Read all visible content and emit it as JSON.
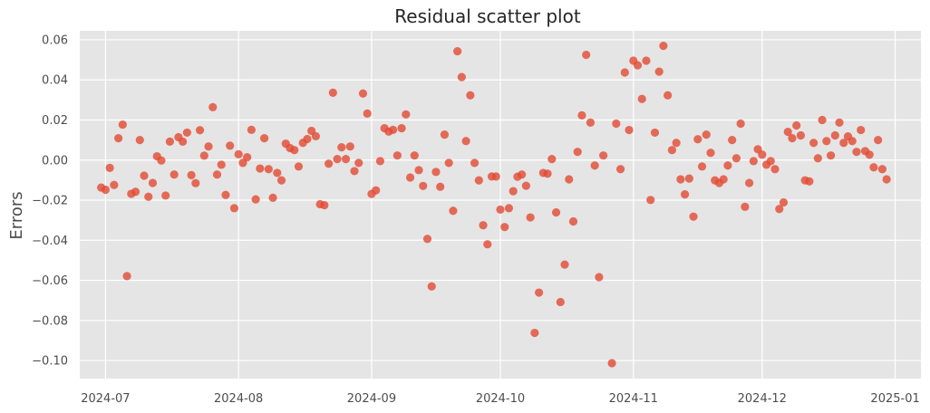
{
  "chart_data": {
    "type": "scatter",
    "title": "Residual scatter plot",
    "xlabel": "",
    "ylabel": "Errors",
    "x_axis": {
      "type": "date",
      "range": [
        "2024-06-25",
        "2025-01-07"
      ],
      "ticks": [
        "2024-07-01",
        "2024-08-01",
        "2024-09-01",
        "2024-10-01",
        "2024-11-01",
        "2024-12-01",
        "2025-01-01"
      ],
      "tick_labels": [
        "2024-07",
        "2024-08",
        "2024-09",
        "2024-10",
        "2024-11",
        "2024-12",
        "2025-01"
      ]
    },
    "ylim": [
      -0.109,
      0.0645
    ],
    "yticks": [
      0.06,
      0.04,
      0.02,
      0.0,
      -0.02,
      -0.04,
      -0.06,
      -0.08,
      -0.1
    ],
    "ytick_labels": [
      "0.06",
      "0.04",
      "0.02",
      "0.00",
      "−0.02",
      "−0.04",
      "−0.06",
      "−0.08",
      "−0.10"
    ],
    "grid": true,
    "colors": {
      "background": "#e5e5e5",
      "grid": "#ffffff",
      "marker": "#e24a33"
    },
    "series": [
      {
        "points": [
          [
            "2024-06-30",
            -0.0137
          ],
          [
            "2024-07-01",
            -0.0148
          ],
          [
            "2024-07-02",
            -0.0039
          ],
          [
            "2024-07-03",
            -0.0124
          ],
          [
            "2024-07-04",
            0.0109
          ],
          [
            "2024-07-05",
            0.0177
          ],
          [
            "2024-07-06",
            -0.0579
          ],
          [
            "2024-07-07",
            -0.0168
          ],
          [
            "2024-07-08",
            -0.0158
          ],
          [
            "2024-07-09",
            0.01
          ],
          [
            "2024-07-10",
            -0.0078
          ],
          [
            "2024-07-11",
            -0.0183
          ],
          [
            "2024-07-12",
            -0.0114
          ],
          [
            "2024-07-13",
            0.0019
          ],
          [
            "2024-07-14",
            -0.0002
          ],
          [
            "2024-07-15",
            -0.0177
          ],
          [
            "2024-07-16",
            0.0092
          ],
          [
            "2024-07-17",
            -0.0072
          ],
          [
            "2024-07-18",
            0.0114
          ],
          [
            "2024-07-19",
            0.0092
          ],
          [
            "2024-07-20",
            0.0137
          ],
          [
            "2024-07-21",
            -0.0075
          ],
          [
            "2024-07-22",
            -0.0115
          ],
          [
            "2024-07-23",
            0.0149
          ],
          [
            "2024-07-24",
            0.0022
          ],
          [
            "2024-07-25",
            0.0068
          ],
          [
            "2024-07-26",
            0.0264
          ],
          [
            "2024-07-27",
            -0.0072
          ],
          [
            "2024-07-28",
            -0.0023
          ],
          [
            "2024-07-29",
            -0.0174
          ],
          [
            "2024-07-30",
            0.0072
          ],
          [
            "2024-07-31",
            -0.024
          ],
          [
            "2024-08-01",
            0.0029
          ],
          [
            "2024-08-02",
            -0.0014
          ],
          [
            "2024-08-03",
            0.0014
          ],
          [
            "2024-08-04",
            0.0151
          ],
          [
            "2024-08-05",
            -0.0196
          ],
          [
            "2024-08-06",
            -0.0042
          ],
          [
            "2024-08-07",
            0.0109
          ],
          [
            "2024-08-08",
            -0.0045
          ],
          [
            "2024-08-09",
            -0.0188
          ],
          [
            "2024-08-10",
            -0.0064
          ],
          [
            "2024-08-11",
            -0.0101
          ],
          [
            "2024-08-12",
            0.0082
          ],
          [
            "2024-08-13",
            0.006
          ],
          [
            "2024-08-14",
            0.005
          ],
          [
            "2024-08-15",
            -0.0032
          ],
          [
            "2024-08-16",
            0.0086
          ],
          [
            "2024-08-17",
            0.0105
          ],
          [
            "2024-08-18",
            0.0146
          ],
          [
            "2024-08-19",
            0.0119
          ],
          [
            "2024-08-20",
            -0.022
          ],
          [
            "2024-08-21",
            -0.0225
          ],
          [
            "2024-08-22",
            -0.0018
          ],
          [
            "2024-08-23",
            0.0336
          ],
          [
            "2024-08-24",
            0.0005
          ],
          [
            "2024-08-25",
            0.0064
          ],
          [
            "2024-08-26",
            0.0005
          ],
          [
            "2024-08-27",
            0.0068
          ],
          [
            "2024-08-28",
            -0.0055
          ],
          [
            "2024-08-29",
            -0.0014
          ],
          [
            "2024-08-30",
            0.0332
          ],
          [
            "2024-08-31",
            0.0232
          ],
          [
            "2024-09-01",
            -0.0169
          ],
          [
            "2024-09-02",
            -0.0151
          ],
          [
            "2024-09-03",
            -0.0005
          ],
          [
            "2024-09-04",
            0.0159
          ],
          [
            "2024-09-05",
            0.0142
          ],
          [
            "2024-09-06",
            0.0151
          ],
          [
            "2024-09-07",
            0.0023
          ],
          [
            "2024-09-08",
            0.0159
          ],
          [
            "2024-09-09",
            0.0228
          ],
          [
            "2024-09-10",
            -0.0087
          ],
          [
            "2024-09-11",
            0.0023
          ],
          [
            "2024-09-12",
            -0.005
          ],
          [
            "2024-09-13",
            -0.0129
          ],
          [
            "2024-09-14",
            -0.0393
          ],
          [
            "2024-09-15",
            -0.063
          ],
          [
            "2024-09-16",
            -0.0059
          ],
          [
            "2024-09-17",
            -0.0133
          ],
          [
            "2024-09-18",
            0.0127
          ],
          [
            "2024-09-19",
            -0.0014
          ],
          [
            "2024-09-20",
            -0.0253
          ],
          [
            "2024-09-21",
            0.0543
          ],
          [
            "2024-09-22",
            0.0414
          ],
          [
            "2024-09-23",
            0.0095
          ],
          [
            "2024-09-24",
            0.0323
          ],
          [
            "2024-09-25",
            -0.0014
          ],
          [
            "2024-09-26",
            -0.0101
          ],
          [
            "2024-09-27",
            -0.0325
          ],
          [
            "2024-09-28",
            -0.042
          ],
          [
            "2024-09-29",
            -0.0082
          ],
          [
            "2024-09-30",
            -0.0082
          ],
          [
            "2024-10-01",
            -0.0247
          ],
          [
            "2024-10-02",
            -0.0334
          ],
          [
            "2024-10-03",
            -0.024
          ],
          [
            "2024-10-04",
            -0.0155
          ],
          [
            "2024-10-05",
            -0.0083
          ],
          [
            "2024-10-06",
            -0.0072
          ],
          [
            "2024-10-07",
            -0.0128
          ],
          [
            "2024-10-08",
            -0.0286
          ],
          [
            "2024-10-09",
            -0.0862
          ],
          [
            "2024-10-10",
            -0.0661
          ],
          [
            "2024-10-11",
            -0.0064
          ],
          [
            "2024-10-12",
            -0.0068
          ],
          [
            "2024-10-13",
            0.0005
          ],
          [
            "2024-10-14",
            -0.0261
          ],
          [
            "2024-10-15",
            -0.0708
          ],
          [
            "2024-10-16",
            -0.0521
          ],
          [
            "2024-10-17",
            -0.0096
          ],
          [
            "2024-10-18",
            -0.0306
          ],
          [
            "2024-10-19",
            0.0041
          ],
          [
            "2024-10-20",
            0.0223
          ],
          [
            "2024-10-21",
            0.0525
          ],
          [
            "2024-10-22",
            0.0187
          ],
          [
            "2024-10-23",
            -0.0027
          ],
          [
            "2024-10-24",
            -0.0584
          ],
          [
            "2024-10-25",
            0.0023
          ],
          [
            "2024-10-27",
            -0.1013
          ],
          [
            "2024-10-28",
            0.0182
          ],
          [
            "2024-10-29",
            -0.0045
          ],
          [
            "2024-10-30",
            0.0437
          ],
          [
            "2024-10-31",
            0.015
          ],
          [
            "2024-11-01",
            0.0496
          ],
          [
            "2024-11-02",
            0.0473
          ],
          [
            "2024-11-03",
            0.0305
          ],
          [
            "2024-11-04",
            0.0496
          ],
          [
            "2024-11-05",
            -0.0199
          ],
          [
            "2024-11-06",
            0.0137
          ],
          [
            "2024-11-07",
            0.0441
          ],
          [
            "2024-11-08",
            0.057
          ],
          [
            "2024-11-09",
            0.0323
          ],
          [
            "2024-11-10",
            0.005
          ],
          [
            "2024-11-11",
            0.0086
          ],
          [
            "2024-11-12",
            -0.0096
          ],
          [
            "2024-11-13",
            -0.0171
          ],
          [
            "2024-11-14",
            -0.0092
          ],
          [
            "2024-11-15",
            -0.0282
          ],
          [
            "2024-11-16",
            0.0104
          ],
          [
            "2024-11-17",
            -0.0032
          ],
          [
            "2024-11-18",
            0.0127
          ],
          [
            "2024-11-19",
            0.0036
          ],
          [
            "2024-11-20",
            -0.0101
          ],
          [
            "2024-11-21",
            -0.0114
          ],
          [
            "2024-11-22",
            -0.0096
          ],
          [
            "2024-11-23",
            -0.0027
          ],
          [
            "2024-11-24",
            0.01
          ],
          [
            "2024-11-25",
            0.0009
          ],
          [
            "2024-11-26",
            0.0182
          ],
          [
            "2024-11-27",
            -0.0233
          ],
          [
            "2024-11-28",
            -0.0114
          ],
          [
            "2024-11-29",
            -0.0005
          ],
          [
            "2024-11-30",
            0.0054
          ],
          [
            "2024-12-01",
            0.0027
          ],
          [
            "2024-12-02",
            -0.0023
          ],
          [
            "2024-12-03",
            -0.0005
          ],
          [
            "2024-12-04",
            -0.0045
          ],
          [
            "2024-12-05",
            -0.0244
          ],
          [
            "2024-12-06",
            -0.0211
          ],
          [
            "2024-12-07",
            0.0141
          ],
          [
            "2024-12-08",
            0.0109
          ],
          [
            "2024-12-09",
            0.0173
          ],
          [
            "2024-12-10",
            0.0123
          ],
          [
            "2024-12-11",
            -0.0101
          ],
          [
            "2024-12-12",
            -0.0106
          ],
          [
            "2024-12-13",
            0.0086
          ],
          [
            "2024-12-14",
            0.0009
          ],
          [
            "2024-12-15",
            0.02
          ],
          [
            "2024-12-16",
            0.0095
          ],
          [
            "2024-12-17",
            0.0023
          ],
          [
            "2024-12-18",
            0.0123
          ],
          [
            "2024-12-19",
            0.0187
          ],
          [
            "2024-12-20",
            0.0086
          ],
          [
            "2024-12-21",
            0.0118
          ],
          [
            "2024-12-22",
            0.0095
          ],
          [
            "2024-12-23",
            0.0041
          ],
          [
            "2024-12-24",
            0.015
          ],
          [
            "2024-12-25",
            0.0045
          ],
          [
            "2024-12-26",
            0.0027
          ],
          [
            "2024-12-27",
            -0.0036
          ],
          [
            "2024-12-28",
            0.01
          ],
          [
            "2024-12-29",
            -0.0045
          ],
          [
            "2024-12-30",
            -0.0096
          ]
        ]
      }
    ]
  }
}
